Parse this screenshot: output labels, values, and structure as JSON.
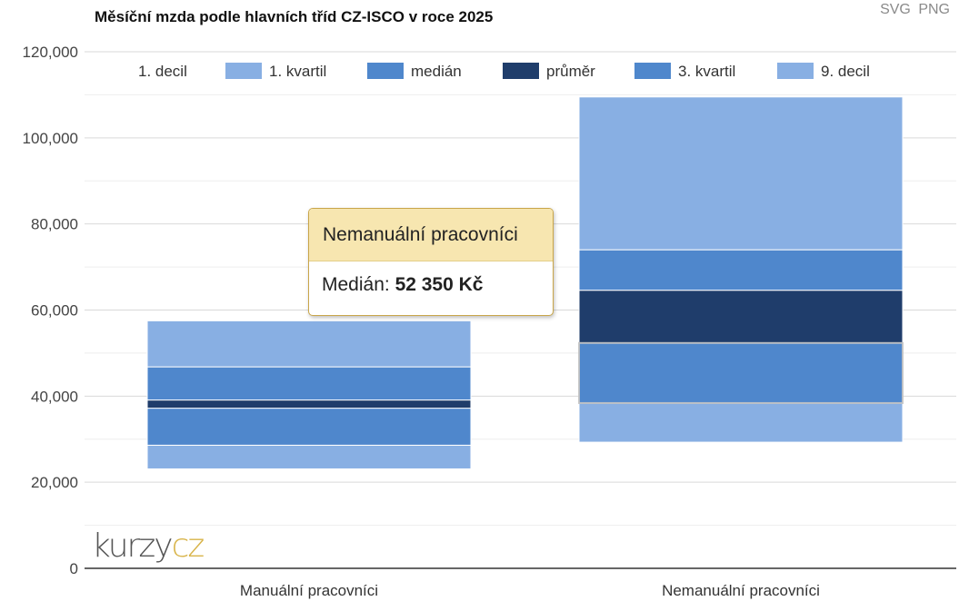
{
  "title": "Měsíční mzda podle hlavních tříd CZ-ISCO v roce 2025",
  "export": {
    "svg_label": "SVG",
    "png_label": "PNG"
  },
  "watermark": {
    "part1": "kurzy",
    "part2": "cz"
  },
  "tooltip": {
    "title": "Nemanuální pracovníci",
    "label": "Medián:",
    "value": "52 350 Kč"
  },
  "colors": {
    "decil": "#88afe3",
    "kvartil": "#4f87cc",
    "prumer": "#1f3d6b",
    "grid": "#d9d9d9",
    "axis": "#333333"
  },
  "chart_data": {
    "type": "bar",
    "stacked": true,
    "title": "Měsíční mzda podle hlavních tříd CZ-ISCO v roce 2025",
    "categories": [
      "Manuální pracovníci",
      "Nemanuální pracovníci"
    ],
    "ylim": [
      0,
      120000
    ],
    "yticks": [
      0,
      20000,
      40000,
      60000,
      80000,
      100000,
      120000
    ],
    "ytick_labels": [
      "0",
      "20,000",
      "40,000",
      "60,000",
      "80,000",
      "100,000",
      "120,000"
    ],
    "grid": true,
    "legend_position": "top",
    "series_bounds": {
      "Manuální pracovníci": {
        "decil_1": 23100,
        "kvartil_1": 28600,
        "median": 37200,
        "prumer": 39100,
        "kvartil_3": 46800,
        "decil_9": 57500
      },
      "Nemanuální pracovníci": {
        "decil_1": 29300,
        "kvartil_1": 38400,
        "median": 52350,
        "prumer": 64600,
        "kvartil_3": 74000,
        "decil_9": 109500
      }
    },
    "legend": [
      {
        "name": "1. decil"
      },
      {
        "name": "1. kvartil",
        "color": "#88afe3"
      },
      {
        "name": "medián",
        "color": "#4f87cc"
      },
      {
        "name": "průměr",
        "color": "#1f3d6b"
      },
      {
        "name": "3. kvartil",
        "color": "#4f87cc"
      },
      {
        "name": "9. decil",
        "color": "#88afe3"
      }
    ]
  }
}
